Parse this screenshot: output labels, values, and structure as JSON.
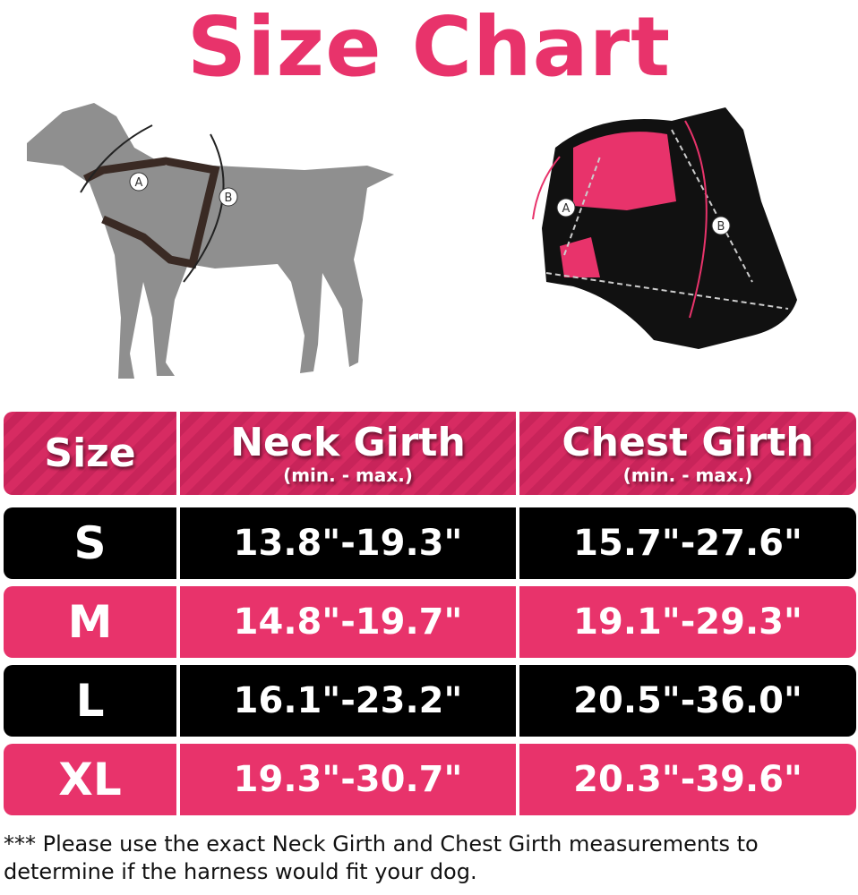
{
  "title": "Size Chart",
  "diagram": {
    "dog_labels": [
      "A",
      "B"
    ],
    "harness_labels": [
      "A",
      "B"
    ]
  },
  "table": {
    "headers": [
      {
        "main": "Size",
        "sub": ""
      },
      {
        "main": "Neck Girth",
        "sub": "(min. - max.)"
      },
      {
        "main": "Chest Girth",
        "sub": "(min. - max.)"
      }
    ],
    "rows": [
      {
        "size": "S",
        "neck": "13.8\"-19.3\"",
        "chest": "15.7\"-27.6\"",
        "style": "black"
      },
      {
        "size": "M",
        "neck": "14.8\"-19.7\"",
        "chest": "19.1\"-29.3\"",
        "style": "pink"
      },
      {
        "size": "L",
        "neck": "16.1\"-23.2\"",
        "chest": "20.5\"-36.0\"",
        "style": "black"
      },
      {
        "size": "XL",
        "neck": "19.3\"-30.7\"",
        "chest": "20.3\"-39.6\"",
        "style": "pink"
      }
    ]
  },
  "note": "*** Please use the exact Neck Girth and Chest Girth measurements to determine if the harness would fit your dog.",
  "colors": {
    "accent": "#e8336b",
    "dark": "#000000",
    "dog": "#8f8f8f"
  }
}
